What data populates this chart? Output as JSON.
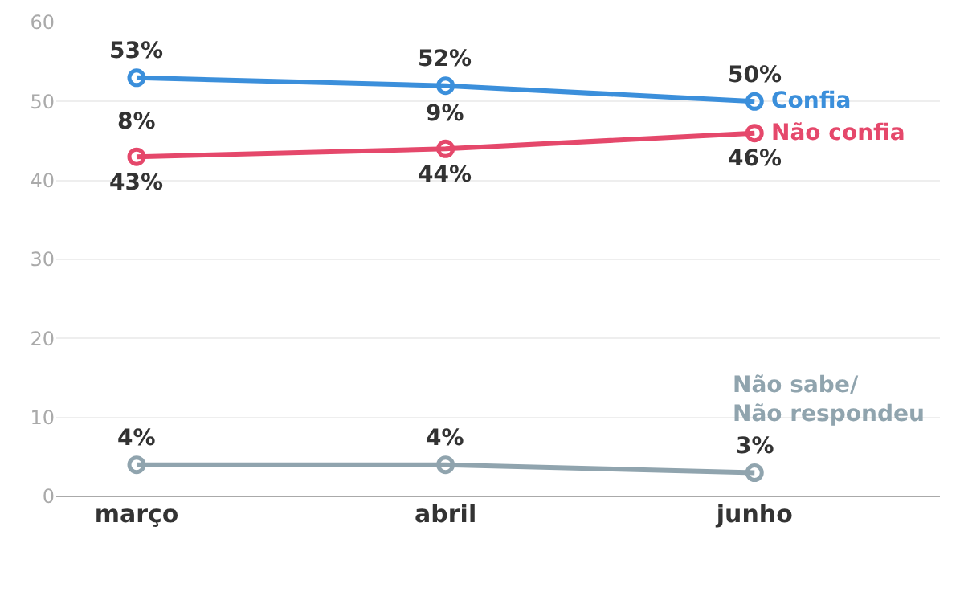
{
  "chart_data": {
    "type": "line",
    "categories": [
      "março",
      "abril",
      "junho"
    ],
    "series": [
      {
        "name": "Confia",
        "color": "#3b8fdb",
        "values": [
          53,
          52,
          50
        ],
        "value_labels": [
          "53%",
          "52%",
          "50%"
        ]
      },
      {
        "name": "Não confia",
        "color": "#e5486b",
        "values": [
          43,
          44,
          46
        ],
        "value_labels": [
          "43%",
          "44%",
          "46%"
        ]
      },
      {
        "name": "Não sabe/\nNão respondeu",
        "color": "#90a4ae",
        "values": [
          4,
          4,
          3
        ],
        "value_labels": [
          "4%",
          "4%",
          "3%"
        ]
      }
    ],
    "annotations": [
      {
        "text": "8%",
        "x": "março",
        "y": 43
      },
      {
        "text": "9%",
        "x": "abril",
        "y": 44
      }
    ],
    "ylim": [
      0,
      60
    ],
    "yticks": [
      0,
      10,
      20,
      30,
      40,
      50,
      60
    ],
    "grid": "y",
    "legend": false,
    "marker": "circle",
    "line_style": "solid"
  }
}
